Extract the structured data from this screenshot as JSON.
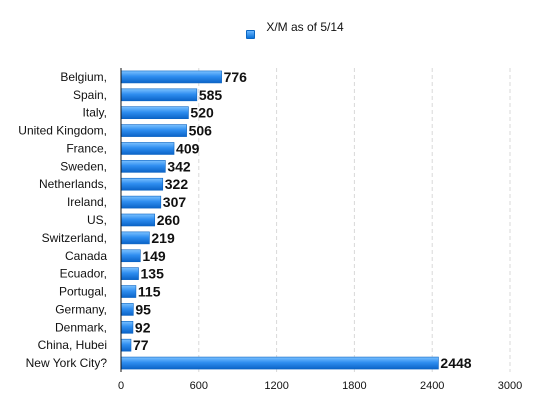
{
  "chart_data": {
    "type": "bar",
    "orientation": "horizontal",
    "categories": [
      "Belgium,",
      "Spain,",
      "Italy,",
      "United Kingdom,",
      "France,",
      "Sweden,",
      "Netherlands,",
      "Ireland,",
      "US,",
      "Switzerland,",
      "Canada",
      "Ecuador,",
      "Portugal,",
      "Germany,",
      "Denmark,",
      "China, Hubei",
      "New York City?"
    ],
    "series": [
      {
        "name": "X/M as of 5/14",
        "values": [
          776,
          585,
          520,
          506,
          409,
          342,
          322,
          307,
          260,
          219,
          149,
          135,
          115,
          95,
          92,
          77,
          2448
        ],
        "color": "#1f7fe0"
      }
    ],
    "xlim": [
      0,
      3000
    ],
    "xticks": [
      0,
      600,
      1200,
      1800,
      2400,
      3000
    ],
    "grid": true,
    "legend_position": "top"
  }
}
